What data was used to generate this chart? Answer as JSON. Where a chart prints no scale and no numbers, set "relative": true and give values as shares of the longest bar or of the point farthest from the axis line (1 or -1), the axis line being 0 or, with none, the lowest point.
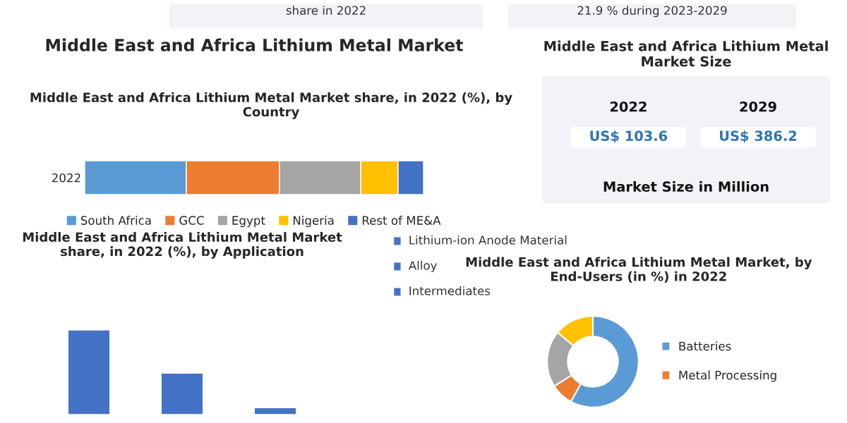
{
  "chart_data": [
    {
      "type": "other",
      "annotations": [
        "share in 2022",
        "21.9 % during 2023-2029"
      ]
    },
    {
      "type": "bar",
      "title": "Middle East and Africa Lithium Metal Market",
      "subtitle": "Middle East and Africa Lithium Metal Market share, in 2022 (%), by Country",
      "orientation": "horizontal",
      "stacked": true,
      "relative": true,
      "categories": [
        "2022"
      ],
      "legend": "bottom",
      "series": [
        {
          "name": "South Africa",
          "color": "#5b9bd5",
          "values": [
            0.3
          ]
        },
        {
          "name": "GCC",
          "color": "#ed7d31",
          "values": [
            0.275
          ]
        },
        {
          "name": "Egypt",
          "color": "#a5a5a5",
          "values": [
            0.24
          ]
        },
        {
          "name": "Nigeria",
          "color": "#ffc000",
          "values": [
            0.11
          ]
        },
        {
          "name": "Rest of ME&A",
          "color": "#4472c4",
          "values": [
            0.075
          ]
        }
      ]
    },
    {
      "type": "other",
      "title": "Middle East and Africa Lithium Metal Market Size",
      "annotations": [
        "2022",
        "2029",
        "US$ 103.6",
        "US$ 386.2",
        "Market Size in Million"
      ]
    },
    {
      "type": "bar",
      "title": "Middle East and Africa Lithium Metal Market share, in 2022 (%), by Application",
      "relative": true,
      "categories": [
        null,
        null,
        null
      ],
      "annotations": [
        "Lithium-ion Anode Material",
        "Alloy",
        "Intermediates"
      ],
      "series": [
        {
          "color": "#4472c4",
          "values": [
            1,
            0.49,
            0.08
          ]
        }
      ]
    },
    {
      "type": "donut",
      "title": "Middle East and Africa Lithium Metal Market, by End-Users (in %) in 2022",
      "categories": [
        "Batteries",
        "Metal Processing",
        null,
        null
      ],
      "values": [
        58,
        8,
        20,
        14
      ],
      "colors": [
        "#5b9bd5",
        "#ed7d31",
        "#a5a5a5",
        "#ffc000"
      ],
      "legend": "right"
    }
  ]
}
